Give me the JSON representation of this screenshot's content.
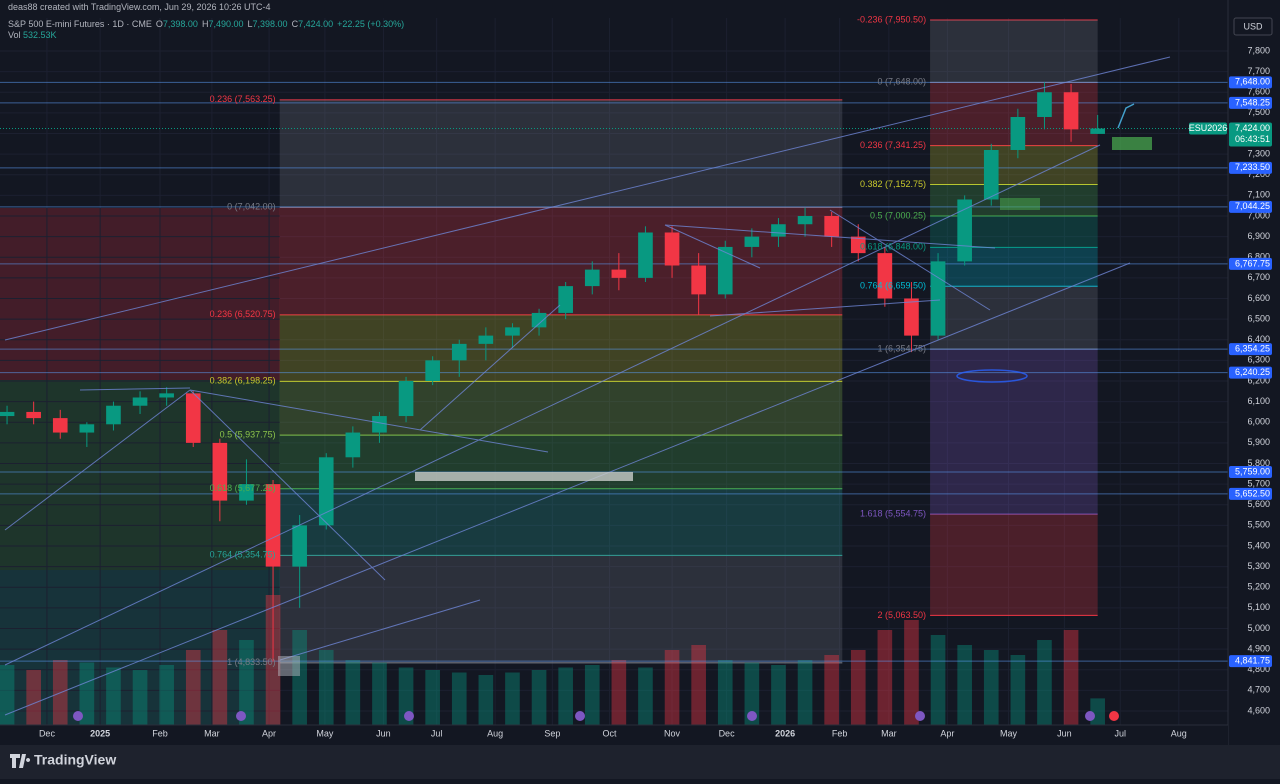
{
  "header": {
    "credit": "deas88 created with TradingView.com, Jun 29, 2026 10:26 UTC-4",
    "symbol": "S&P 500 E-mini Futures · 1D · CME",
    "ohlc": [
      {
        "key": "O",
        "value": "7,398.00"
      },
      {
        "key": "H",
        "value": "7,490.00"
      },
      {
        "key": "L",
        "value": "7,398.00"
      },
      {
        "key": "C",
        "value": "7,424.00"
      }
    ],
    "change": "+22.25 (+0.30%)",
    "volume": {
      "key": "Vol",
      "value": "532.53K"
    },
    "currency": "USD"
  },
  "footer": {
    "brand": "TradingView"
  },
  "chart_data": {
    "type": "candlestick",
    "up_color": "#089981",
    "down_color": "#f23645",
    "grid": true,
    "x": [
      -3,
      -1,
      1,
      3,
      5,
      7,
      9,
      11,
      13,
      15,
      17,
      19,
      21,
      23,
      25,
      27,
      29,
      31,
      33,
      35,
      37,
      39,
      41,
      43,
      45,
      47,
      49,
      51,
      53,
      55,
      57,
      59,
      61,
      63,
      65,
      67,
      69,
      71,
      73,
      75,
      77,
      79
    ],
    "open": [
      6030,
      6050,
      6020,
      5950,
      5990,
      6080,
      6120,
      6140,
      5900,
      5620,
      5700,
      5300,
      5500,
      5830,
      5950,
      6030,
      6200,
      6300,
      6380,
      6420,
      6460,
      6530,
      6660,
      6740,
      6700,
      6920,
      6760,
      6620,
      6850,
      6900,
      6960,
      7000,
      6900,
      6820,
      6600,
      6420,
      6780,
      7080,
      7320,
      7480,
      7600,
      7398
    ],
    "high": [
      6080,
      6100,
      6060,
      6000,
      6100,
      6150,
      6170,
      6150,
      5920,
      5820,
      5720,
      5550,
      5850,
      5980,
      6050,
      6220,
      6320,
      6400,
      6460,
      6480,
      6550,
      6680,
      6780,
      6820,
      6950,
      6950,
      6820,
      6880,
      6940,
      6990,
      7040,
      7020,
      6960,
      6850,
      6680,
      6820,
      7100,
      7350,
      7520,
      7648,
      7640,
      7490
    ],
    "low": [
      5990,
      5990,
      5920,
      5880,
      5960,
      6040,
      6080,
      5880,
      5520,
      5600,
      4840,
      5100,
      5480,
      5780,
      5900,
      6000,
      6180,
      6220,
      6300,
      6360,
      6420,
      6500,
      6620,
      6640,
      6680,
      6700,
      6520,
      6600,
      6800,
      6850,
      6900,
      6850,
      6780,
      6560,
      6340,
      6400,
      6760,
      7050,
      7280,
      7420,
      7360,
      7398
    ],
    "close": [
      6050,
      6020,
      5950,
      5990,
      6080,
      6120,
      6140,
      5900,
      5620,
      5700,
      5300,
      5500,
      5830,
      5950,
      6030,
      6200,
      6300,
      6380,
      6420,
      6460,
      6530,
      6660,
      6740,
      6700,
      6920,
      6760,
      6620,
      6850,
      6900,
      6960,
      7000,
      6900,
      6820,
      6600,
      6420,
      6780,
      7080,
      7320,
      7480,
      7600,
      7420,
      7424
    ],
    "volume": [
      1200,
      1100,
      1300,
      1250,
      1150,
      1100,
      1200,
      1500,
      1900,
      1700,
      2600,
      1900,
      1500,
      1300,
      1250,
      1150,
      1100,
      1050,
      1000,
      1050,
      1100,
      1150,
      1200,
      1300,
      1150,
      1500,
      1600,
      1300,
      1250,
      1200,
      1300,
      1400,
      1500,
      1900,
      2100,
      1800,
      1600,
      1500,
      1400,
      1700,
      1900,
      532.53
    ],
    "xlim": [
      -3.53,
      88.8
    ],
    "xticks": [
      {
        "value": 0,
        "label": "Dec"
      },
      {
        "value": 4,
        "label": "2025"
      },
      {
        "value": 8.5,
        "label": "Feb"
      },
      {
        "value": 12.4,
        "label": "Mar"
      },
      {
        "value": 16.7,
        "label": "Apr"
      },
      {
        "value": 20.9,
        "label": "May"
      },
      {
        "value": 25.3,
        "label": "Jun"
      },
      {
        "value": 29.3,
        "label": "Jul"
      },
      {
        "value": 33.7,
        "label": "Aug"
      },
      {
        "value": 38,
        "label": "Sep"
      },
      {
        "value": 42.3,
        "label": "Oct"
      },
      {
        "value": 47,
        "label": "Nov"
      },
      {
        "value": 51.1,
        "label": "Dec"
      },
      {
        "value": 55.5,
        "label": "2026"
      },
      {
        "value": 59.6,
        "label": "Feb"
      },
      {
        "value": 63.3,
        "label": "Mar"
      },
      {
        "value": 67.7,
        "label": "Apr"
      },
      {
        "value": 72.3,
        "label": "May"
      },
      {
        "value": 76.5,
        "label": "Jun"
      },
      {
        "value": 80.7,
        "label": "Jul"
      },
      {
        "value": 85.1,
        "label": "Aug"
      }
    ],
    "ylim": [
      4532,
      7960
    ],
    "yticks": [
      {
        "value": 7800,
        "label": "7,800"
      },
      {
        "value": 7700,
        "label": "7,700"
      },
      {
        "value": 7600,
        "label": "7,600"
      },
      {
        "value": 7500,
        "label": "7,500"
      },
      {
        "value": 7400,
        "label": "7,400"
      },
      {
        "value": 7300,
        "label": "7,300"
      },
      {
        "value": 7200,
        "label": "7,200"
      },
      {
        "value": 7100,
        "label": "7,100"
      },
      {
        "value": 7000,
        "label": "7,000"
      },
      {
        "value": 6900,
        "label": "6,900"
      },
      {
        "value": 6800,
        "label": "6,800"
      },
      {
        "value": 6700,
        "label": "6,700"
      },
      {
        "value": 6600,
        "label": "6,600"
      },
      {
        "value": 6500,
        "label": "6,500"
      },
      {
        "value": 6400,
        "label": "6,400"
      },
      {
        "value": 6300,
        "label": "6,300"
      },
      {
        "value": 6200,
        "label": "6,200"
      },
      {
        "value": 6100,
        "label": "6,100"
      },
      {
        "value": 6000,
        "label": "6,000"
      },
      {
        "value": 5900,
        "label": "5,900"
      },
      {
        "value": 5800,
        "label": "5,800"
      },
      {
        "value": 5700,
        "label": "5,700"
      },
      {
        "value": 5600,
        "label": "5,600"
      },
      {
        "value": 5500,
        "label": "5,500"
      },
      {
        "value": 5400,
        "label": "5,400"
      },
      {
        "value": 5300,
        "label": "5,300"
      },
      {
        "value": 5200,
        "label": "5,200"
      },
      {
        "value": 5100,
        "label": "5,100"
      },
      {
        "value": 5000,
        "label": "5,000"
      },
      {
        "value": 4900,
        "label": "4,900"
      },
      {
        "value": 4800,
        "label": "4,800"
      },
      {
        "value": 4700,
        "label": "4,700"
      },
      {
        "value": 4600,
        "label": "4,600"
      }
    ],
    "price_lines": [
      {
        "value": 7648,
        "label": "7,648.00"
      },
      {
        "value": 7548.25,
        "label": "7,548.25"
      },
      {
        "value": 7233.5,
        "label": "7,233.50"
      },
      {
        "value": 7044.25,
        "label": "7,044.25"
      },
      {
        "value": 6767.75,
        "label": "6,767.75"
      },
      {
        "value": 6354.25,
        "label": "6,354.25"
      },
      {
        "value": 6240.25,
        "label": "6,240.25"
      },
      {
        "value": 5759,
        "label": "5,759.00"
      },
      {
        "value": 5652.5,
        "label": "5,652.50"
      },
      {
        "value": 4841.75,
        "label": "4,841.75"
      }
    ],
    "last_price": {
      "value": 7424,
      "label": "7,424.00",
      "countdown": "06:43:51",
      "symbol": "ESU2026",
      "color": "#089981"
    },
    "fibs": [
      {
        "x": [
          17.5,
          59.8
        ],
        "levels": [
          {
            "value": 7563.25,
            "label": "0.236 (7,563.25)",
            "color": "#f23645"
          },
          {
            "value": 7042,
            "label": "0 (7,042.00)",
            "color": "#787b86"
          },
          {
            "value": 6520.75,
            "label": "0.236 (6,520.75)",
            "color": "#f23645"
          },
          {
            "value": 6198.25,
            "label": "0.382 (6,198.25)",
            "color": "#c9c92c"
          },
          {
            "value": 5937.75,
            "label": "0.5 (5,937.75)",
            "color": "#8bc34a"
          },
          {
            "value": 5677.25,
            "label": "0.618 (5,677.25)",
            "color": "#4caf50"
          },
          {
            "value": 5354.75,
            "label": "0.764 (5,354.75)",
            "color": "#26a69a"
          },
          {
            "value": 4833.5,
            "label": "1 (4,833.50)",
            "color": "#787b86"
          }
        ]
      },
      {
        "x": [
          66.4,
          79
        ],
        "levels": [
          {
            "value": 7950.5,
            "label": "-0.236 (7,950.50)",
            "color": "#f23645"
          },
          {
            "value": 7648,
            "label": "0 (7,648.00)",
            "color": "#787b86"
          },
          {
            "value": 7341.25,
            "label": "0.236 (7,341.25)",
            "color": "#f23645"
          },
          {
            "value": 7152.75,
            "label": "0.382 (7,152.75)",
            "color": "#c9c92c"
          },
          {
            "value": 7000.25,
            "label": "0.5 (7,000.25)",
            "color": "#4caf50"
          },
          {
            "value": 6848,
            "label": "0.618 (6,848.00)",
            "color": "#089981"
          },
          {
            "value": 6659.5,
            "label": "0.764 (6,659.50)",
            "color": "#00bcd4"
          },
          {
            "value": 6354.75,
            "label": "1 (6,354.75)",
            "color": "#787b86"
          },
          {
            "value": 5554.75,
            "label": "1.618 (5,554.75)",
            "color": "#7e57c2"
          },
          {
            "value": 5063.5,
            "label": "2 (5,063.50)",
            "color": "#f23645"
          }
        ]
      }
    ]
  }
}
